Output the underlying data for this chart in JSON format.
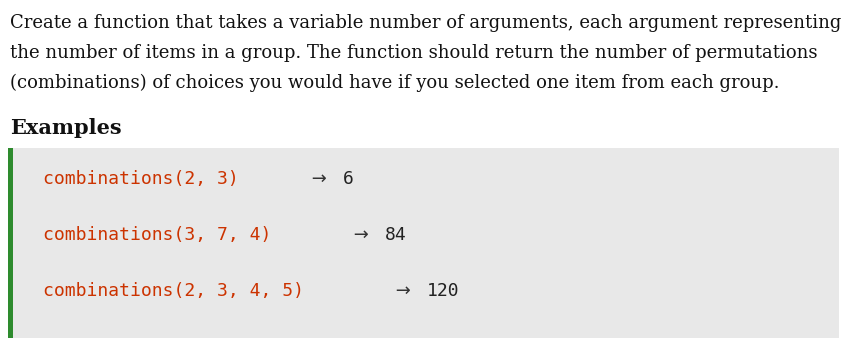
{
  "bg_color": "#ffffff",
  "description_lines": [
    "Create a function that takes a variable number of arguments, each argument representing",
    "the number of items in a group. The function should return the number of permutations",
    "(combinations) of choices you would have if you selected one item from each group."
  ],
  "examples_label": "Examples",
  "code_bg_color": "#e8e8e8",
  "accent_color": "#2e8b2e",
  "code_color": "#cc3300",
  "arrow_color": "#333333",
  "result_color": "#222222",
  "examples": [
    {
      "call": "combinations(2, 3)",
      "arrow": " → ",
      "result": "6"
    },
    {
      "call": "combinations(3, 7, 4)",
      "arrow": " → ",
      "result": "84"
    },
    {
      "call": "combinations(2, 3, 4, 5)",
      "arrow": " → ",
      "result": "120"
    }
  ],
  "desc_fontsize": 13.0,
  "examples_fontsize": 15.0,
  "code_fontsize": 13.0,
  "desc_font": "DejaVu Serif",
  "examples_font": "DejaVu Serif",
  "code_font": "DejaVu Sans Mono"
}
